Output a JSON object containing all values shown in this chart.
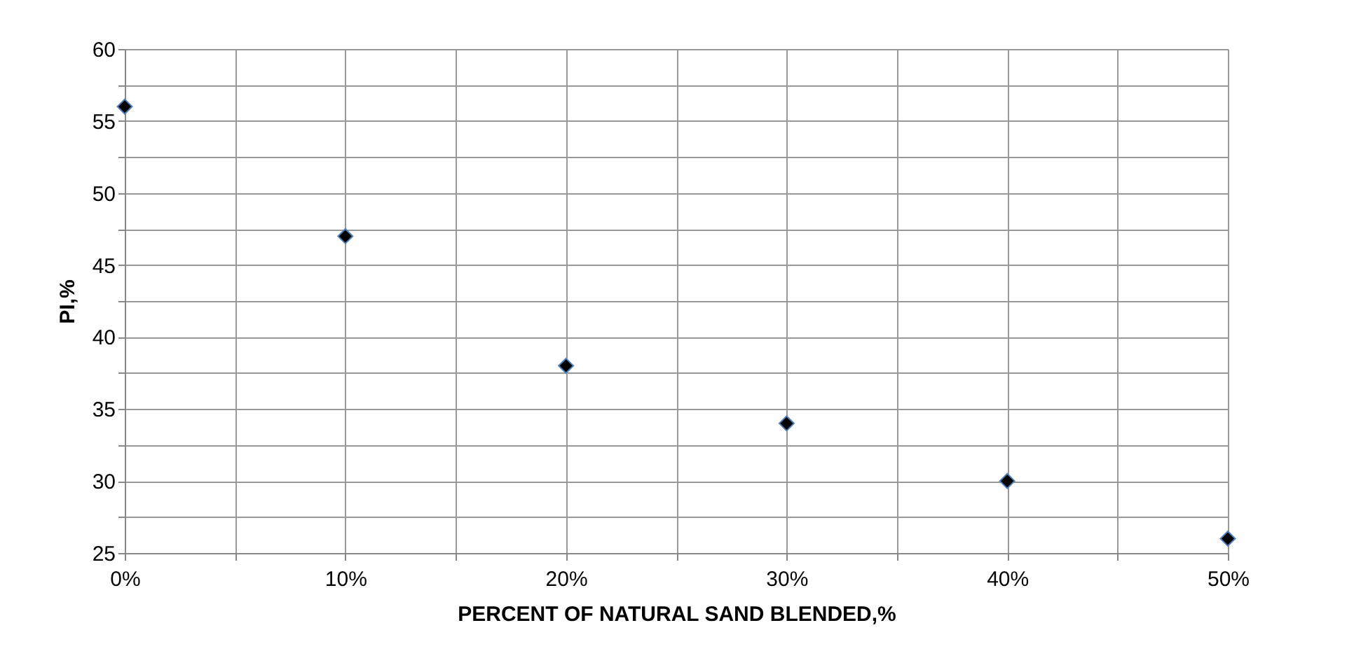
{
  "chart_data": {
    "type": "scatter",
    "xlabel": "PERCENT OF NATURAL SAND BLENDED,%",
    "ylabel": "PI,%",
    "x": [
      0,
      10,
      20,
      30,
      40,
      50
    ],
    "series": [
      {
        "color": "#000000",
        "values": [
          56,
          47,
          38,
          34,
          30,
          26
        ]
      }
    ],
    "xlim": [
      0,
      50
    ],
    "xticks": [
      {
        "value": 0,
        "label": "0%"
      },
      {
        "value": 5,
        "label": null
      },
      {
        "value": 10,
        "label": "10%"
      },
      {
        "value": 15,
        "label": null
      },
      {
        "value": 20,
        "label": "20%"
      },
      {
        "value": 25,
        "label": null
      },
      {
        "value": 30,
        "label": "30%"
      },
      {
        "value": 35,
        "label": null
      },
      {
        "value": 40,
        "label": "40%"
      },
      {
        "value": 45,
        "label": null
      },
      {
        "value": 50,
        "label": "50%"
      }
    ],
    "ylim": [
      25,
      60
    ],
    "yticks": [
      25,
      {
        "value": 27.5,
        "label": null
      },
      30,
      {
        "value": 32.5,
        "label": null
      },
      35,
      {
        "value": 37.5,
        "label": null
      },
      40,
      {
        "value": 42.5,
        "label": null
      },
      45,
      {
        "value": 47.5,
        "label": null
      },
      50,
      {
        "value": 52.5,
        "label": null
      },
      55,
      {
        "value": 57.5,
        "label": null
      },
      60
    ],
    "grid": true,
    "legend": false,
    "marker": "diamond"
  }
}
